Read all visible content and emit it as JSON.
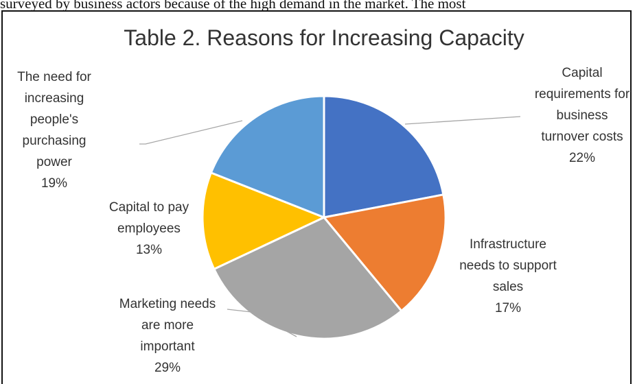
{
  "cropped_text": "surveyed by business actors because of the high demand in the market. The most",
  "chart_data": {
    "type": "pie",
    "title": "Table 2. Reasons for Increasing Capacity",
    "slices": [
      {
        "label_lines": [
          "Capital",
          "requirements for",
          "business",
          "turnover costs"
        ],
        "value": 22,
        "value_label": "22%",
        "color": "#4472C4"
      },
      {
        "label_lines": [
          "Infrastructure",
          "needs to support",
          "sales"
        ],
        "value": 17,
        "value_label": "17%",
        "color": "#ED7D31"
      },
      {
        "label_lines": [
          "Marketing needs",
          "are more",
          "important"
        ],
        "value": 29,
        "value_label": "29%",
        "color": "#A5A5A5"
      },
      {
        "label_lines": [
          "Capital to pay",
          "employees"
        ],
        "value": 13,
        "value_label": "13%",
        "color": "#FFC000"
      },
      {
        "label_lines": [
          "The need for",
          "increasing",
          "people's",
          "purchasing",
          "power"
        ],
        "value": 19,
        "value_label": "19%",
        "color": "#5B9BD5"
      }
    ],
    "legend": "none"
  }
}
